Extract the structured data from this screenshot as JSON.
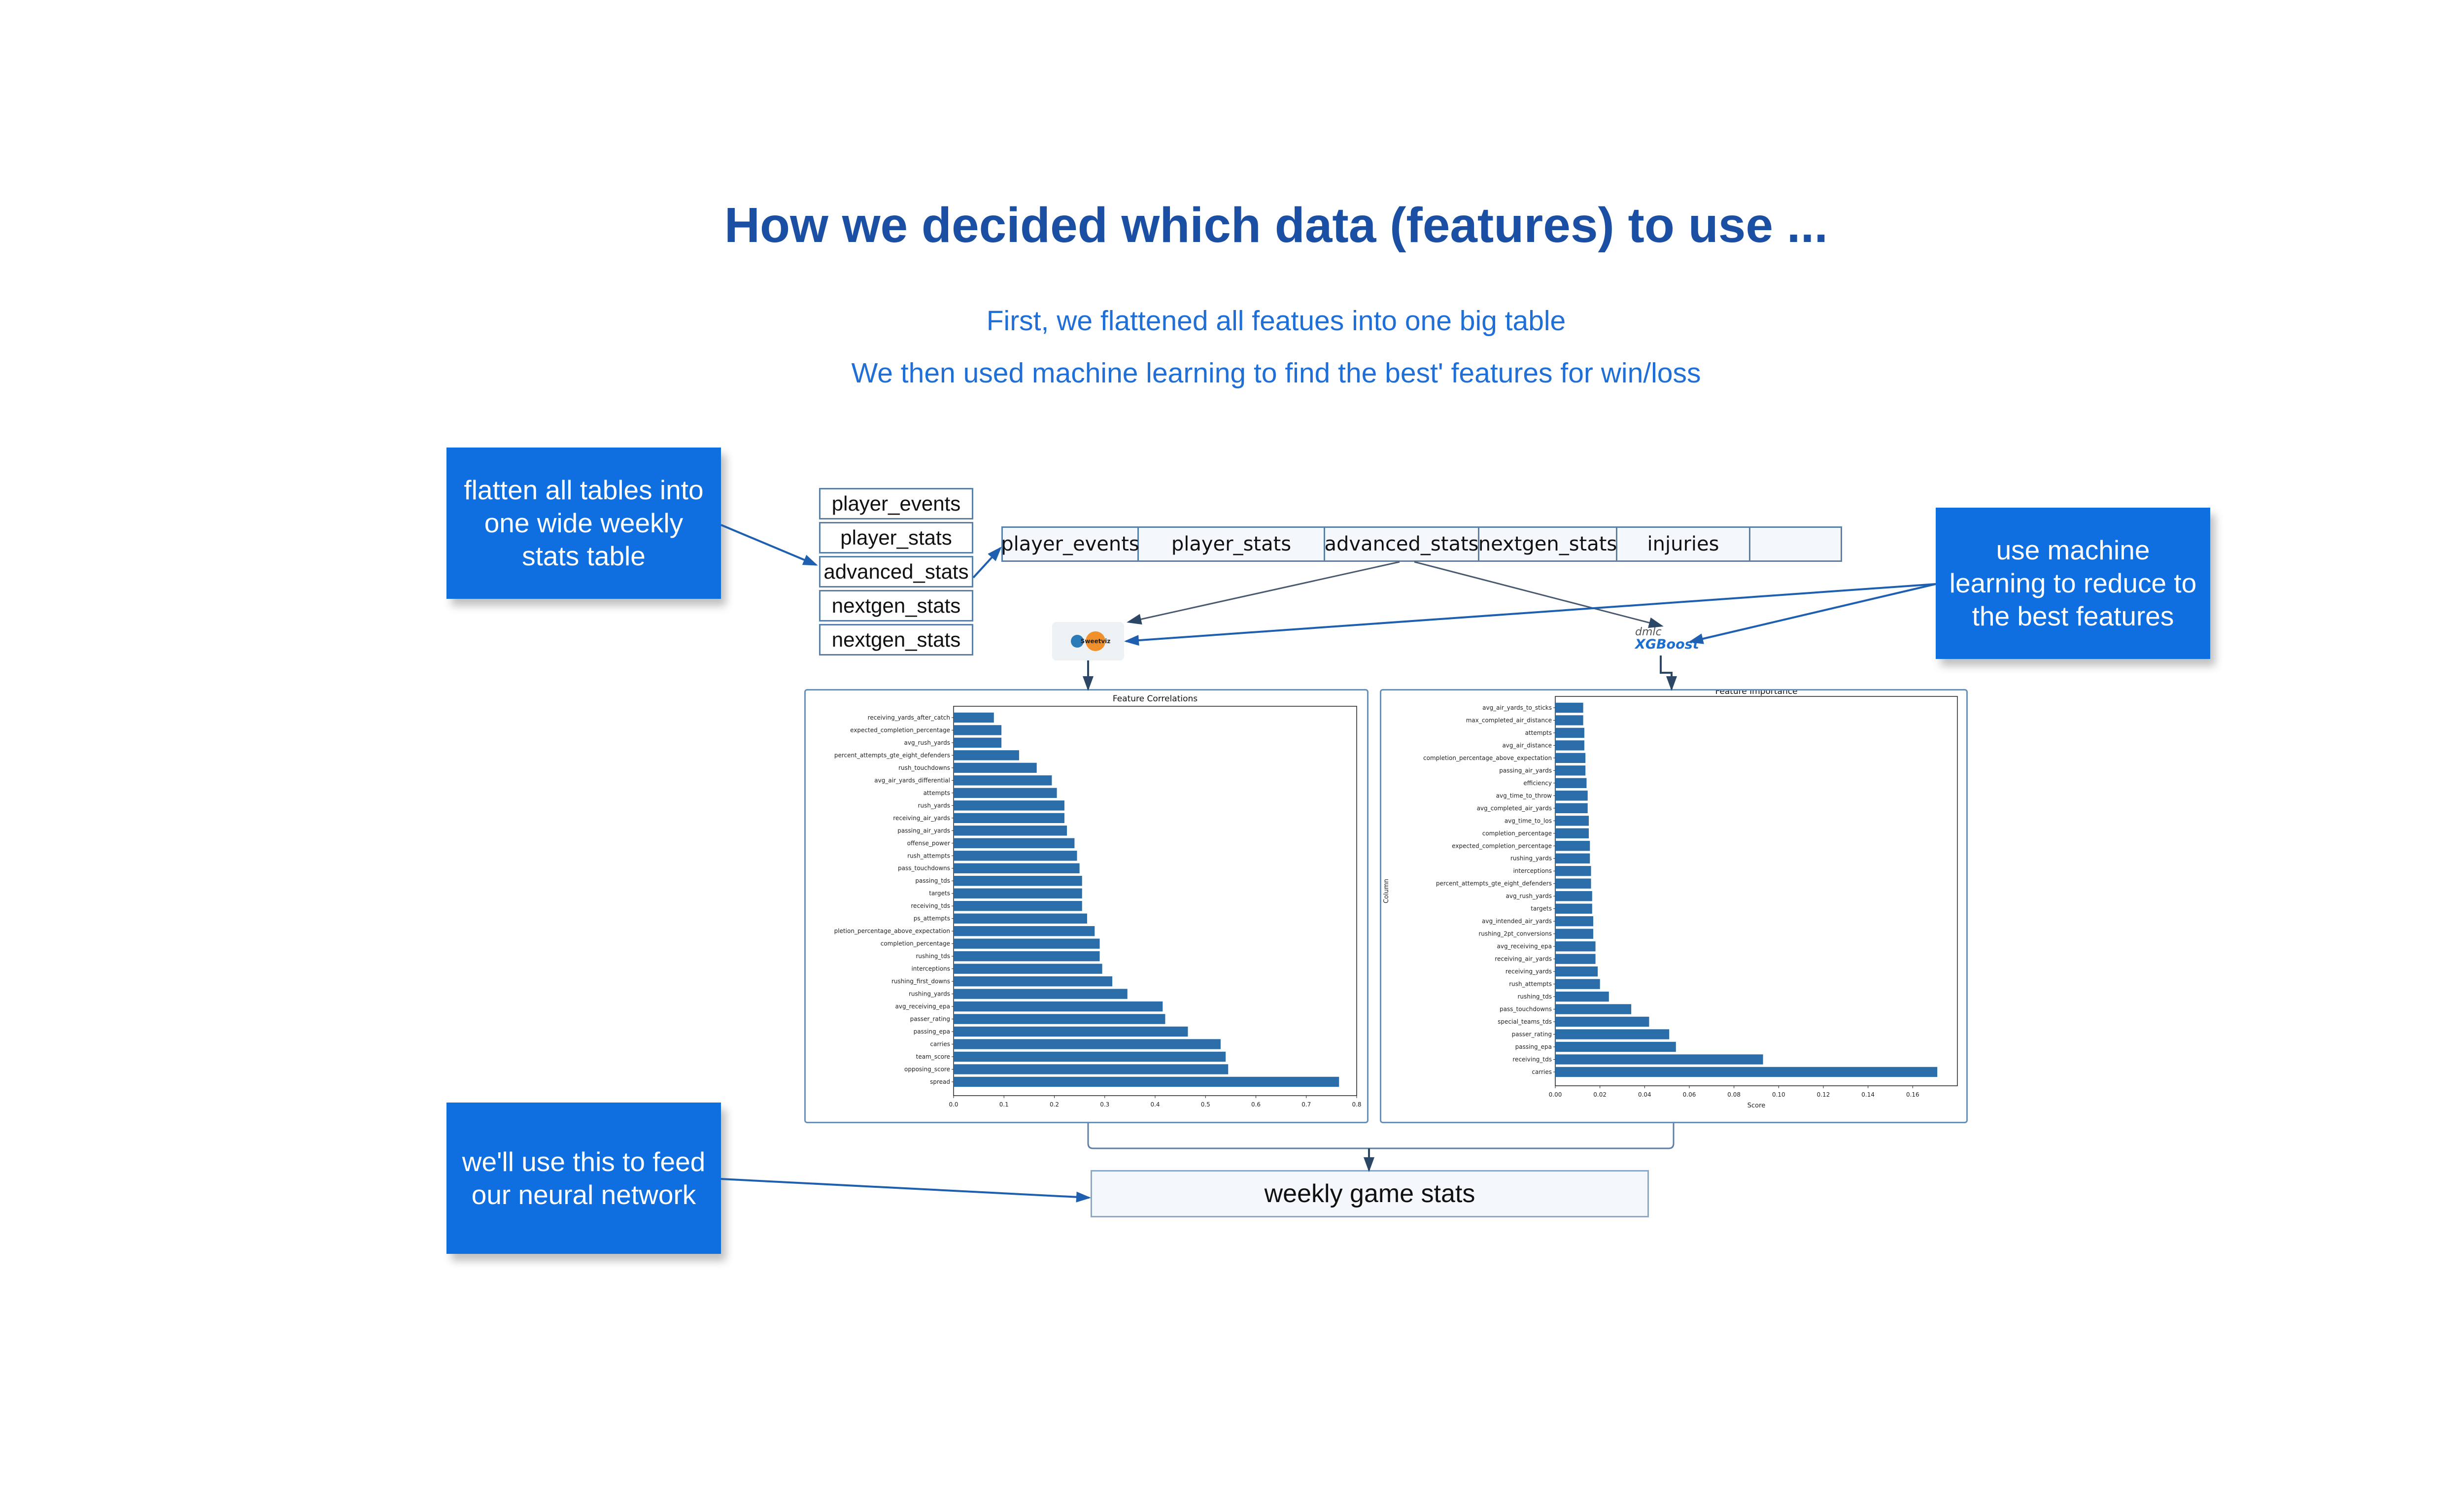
{
  "heading": {
    "title": "How we decided which data (features)  to use ...",
    "line1": "First, we flattened all featues into one big table",
    "line2": "We then used machine learning to find the best' features for win/loss"
  },
  "callouts": {
    "flatten": "flatten all tables into one wide weekly stats table",
    "ml": "use machine learning to reduce to the best features",
    "feed": "we'll use this to feed our neural network"
  },
  "source_tables": [
    "player_events",
    "player_stats",
    "advanced_stats",
    "nextgen_stats",
    "nextgen_stats"
  ],
  "wide_table": [
    "player_events",
    "player_stats",
    "advanced_stats",
    "nextgen_stats",
    "injuries",
    ""
  ],
  "target_table": "weekly game stats",
  "logos": {
    "sweetviz_badge": "Sweetviz",
    "xgboost_small": "dmlc",
    "xgboost": "XGBoost"
  },
  "colors": {
    "title": "#1a4fa3",
    "subtitle": "#1f6fd6",
    "callout_bg": "#0f6fe0",
    "bar": "#2b6da8",
    "arrow": "#1f5fb0"
  },
  "chart_data": [
    {
      "type": "bar",
      "orientation": "horizontal",
      "title": "Feature Correlations",
      "xlim": [
        0,
        0.8
      ],
      "xticks": [
        "0.0",
        "0.1",
        "0.2",
        "0.3",
        "0.4",
        "0.5",
        "0.6",
        "0.7",
        "0.8"
      ],
      "categories": [
        "receiving_yards_after_catch",
        "expected_completion_percentage",
        "avg_rush_yards",
        "percent_attempts_gte_eight_defenders",
        "rush_touchdowns",
        "avg_air_yards_differential",
        "attempts",
        "rush_yards",
        "receiving_air_yards",
        "passing_air_yards",
        "offense_power",
        "rush_attempts",
        "pass_touchdowns",
        "passing_tds",
        "targets",
        "receiving_tds",
        "ps_attempts",
        "pletion_percentage_above_expectation",
        "completion_percentage",
        "rushing_tds",
        "interceptions",
        "rushing_first_downs",
        "rushing_yards",
        "avg_receiving_epa",
        "passer_rating",
        "passing_epa",
        "carries",
        "team_score",
        "opposing_score",
        "spread"
      ],
      "values": [
        0.08,
        0.095,
        0.095,
        0.13,
        0.165,
        0.195,
        0.205,
        0.22,
        0.22,
        0.225,
        0.24,
        0.245,
        0.25,
        0.255,
        0.255,
        0.255,
        0.265,
        0.28,
        0.29,
        0.29,
        0.295,
        0.315,
        0.345,
        0.415,
        0.42,
        0.465,
        0.53,
        0.54,
        0.545,
        0.765
      ]
    },
    {
      "type": "bar",
      "orientation": "horizontal",
      "title": "Feature Importance",
      "xlabel": "Score",
      "ylabel": "Column",
      "xlim": [
        0,
        0.18
      ],
      "xticks": [
        "0.00",
        "0.02",
        "0.04",
        "0.06",
        "0.08",
        "0.10",
        "0.12",
        "0.14",
        "0.16"
      ],
      "categories": [
        "avg_air_yards_to_sticks",
        "max_completed_air_distance",
        "attempts",
        "avg_air_distance",
        "completion_percentage_above_expectation",
        "passing_air_yards",
        "efficiency",
        "avg_time_to_throw",
        "avg_completed_air_yards",
        "avg_time_to_los",
        "completion_percentage",
        "expected_completion_percentage",
        "rushing_yards",
        "interceptions",
        "percent_attempts_gte_eight_defenders",
        "avg_rush_yards",
        "targets",
        "avg_intended_air_yards",
        "rushing_2pt_conversions",
        "avg_receiving_epa",
        "receiving_air_yards",
        "receiving_yards",
        "rush_attempts",
        "rushing_tds",
        "pass_touchdowns",
        "special_teams_tds",
        "passer_rating",
        "passing_epa",
        "receiving_tds",
        "carries"
      ],
      "values": [
        0.0125,
        0.0125,
        0.013,
        0.013,
        0.0135,
        0.0135,
        0.014,
        0.0145,
        0.0145,
        0.015,
        0.015,
        0.0155,
        0.0155,
        0.016,
        0.016,
        0.0165,
        0.0165,
        0.017,
        0.017,
        0.018,
        0.018,
        0.019,
        0.02,
        0.024,
        0.034,
        0.042,
        0.051,
        0.054,
        0.093,
        0.171
      ]
    }
  ]
}
